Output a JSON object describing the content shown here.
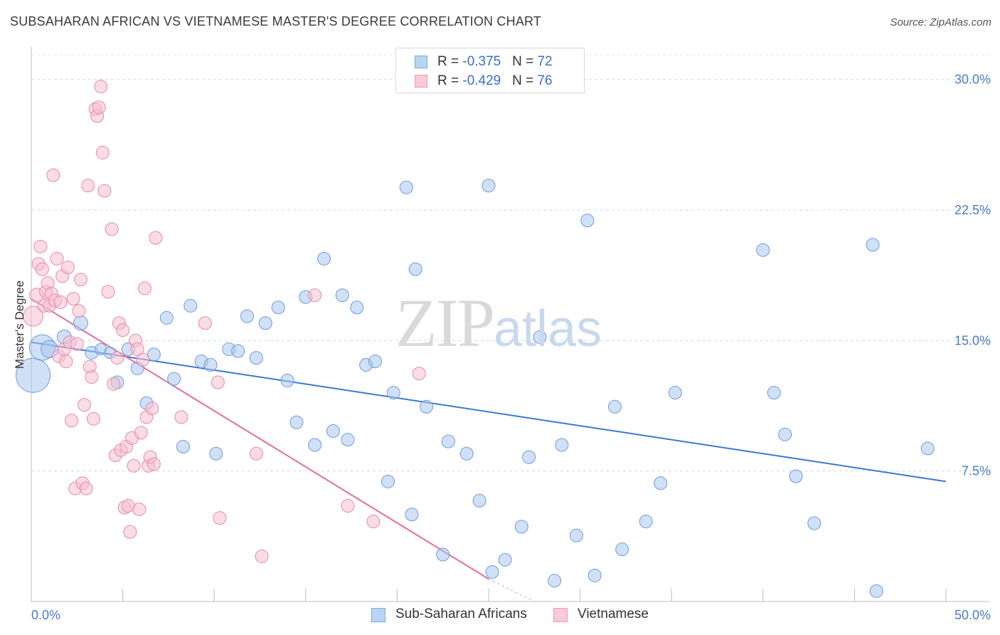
{
  "title": "SUBSAHARAN AFRICAN VS VIETNAMESE MASTER'S DEGREE CORRELATION CHART",
  "source": "Source: ZipAtlas.com",
  "watermark": {
    "zip": "ZIP",
    "atlas": "atlas"
  },
  "legend": {
    "series1": {
      "r_label": "R = ",
      "r_value": "-0.375",
      "n_label": "N = ",
      "n_value": "72"
    },
    "series2": {
      "r_label": "R = ",
      "r_value": "-0.429",
      "n_label": "N = ",
      "n_value": "76"
    }
  },
  "bottom_legend": {
    "series1": "Sub-Saharan Africans",
    "series2": "Vietnamese"
  },
  "colors": {
    "blue_fill": "#a9c6ee",
    "blue_stroke": "#6f9bd8",
    "blue_line": "#3b78d0",
    "pink_fill": "#f6bfd0",
    "pink_stroke": "#e68aa8",
    "pink_line": "#e0709a",
    "tick_text": "#4a7cc7"
  },
  "chart_data": {
    "type": "scatter",
    "title": "SUBSAHARAN AFRICAN VS VIETNAMESE MASTER'S DEGREE CORRELATION CHART",
    "xlabel": "",
    "ylabel": "Master's Degree",
    "xlim": [
      0,
      50
    ],
    "ylim": [
      0,
      31.5
    ],
    "x_tick_labels": [
      "0.0%",
      "50.0%"
    ],
    "y_ticks": [
      7.5,
      15.0,
      22.5,
      30.0
    ],
    "y_tick_labels": [
      "7.5%",
      "15.0%",
      "22.5%",
      "30.0%"
    ],
    "grid": "horizontal dashed",
    "series": [
      {
        "name": "Sub-Saharan Africans",
        "r": -0.375,
        "n": 72,
        "trend": {
          "x": [
            0,
            50
          ],
          "y": [
            14.9,
            6.9
          ]
        },
        "points": [
          [
            0.1,
            13.0,
            24
          ],
          [
            0.6,
            14.6,
            18
          ],
          [
            1.0,
            14.5,
            12
          ],
          [
            1.8,
            15.2,
            10
          ],
          [
            2.7,
            16.0,
            10
          ],
          [
            3.3,
            14.3,
            9
          ],
          [
            3.8,
            14.5,
            8
          ],
          [
            4.3,
            14.3,
            8
          ],
          [
            4.7,
            12.6,
            9
          ],
          [
            5.3,
            14.5,
            9
          ],
          [
            5.8,
            13.4,
            9
          ],
          [
            6.3,
            11.4,
            9
          ],
          [
            6.7,
            14.2,
            9
          ],
          [
            7.4,
            16.3,
            9
          ],
          [
            7.8,
            12.8,
            9
          ],
          [
            8.3,
            8.9,
            9
          ],
          [
            8.7,
            17.0,
            9
          ],
          [
            9.3,
            13.8,
            9
          ],
          [
            9.8,
            13.6,
            9
          ],
          [
            10.1,
            8.5,
            9
          ],
          [
            10.8,
            14.5,
            9
          ],
          [
            11.3,
            14.4,
            9
          ],
          [
            11.8,
            16.4,
            9
          ],
          [
            12.3,
            14.0,
            9
          ],
          [
            12.8,
            16.0,
            9
          ],
          [
            13.5,
            16.9,
            9
          ],
          [
            14.0,
            12.7,
            9
          ],
          [
            14.5,
            10.3,
            9
          ],
          [
            15.0,
            17.5,
            9
          ],
          [
            15.5,
            9.0,
            9
          ],
          [
            16.0,
            19.7,
            9
          ],
          [
            16.5,
            9.8,
            9
          ],
          [
            17.0,
            17.6,
            9
          ],
          [
            17.3,
            9.3,
            9
          ],
          [
            17.8,
            16.9,
            9
          ],
          [
            18.3,
            13.6,
            9
          ],
          [
            18.8,
            13.8,
            9
          ],
          [
            19.5,
            6.9,
            9
          ],
          [
            19.8,
            12.0,
            9
          ],
          [
            20.5,
            23.8,
            9
          ],
          [
            20.8,
            5.0,
            9
          ],
          [
            21.0,
            19.1,
            9
          ],
          [
            21.6,
            11.2,
            9
          ],
          [
            22.5,
            2.7,
            9
          ],
          [
            22.8,
            9.2,
            9
          ],
          [
            23.8,
            8.5,
            9
          ],
          [
            24.5,
            5.8,
            9
          ],
          [
            25.0,
            23.9,
            9
          ],
          [
            25.2,
            1.7,
            9
          ],
          [
            25.9,
            2.4,
            9
          ],
          [
            26.8,
            4.3,
            9
          ],
          [
            27.2,
            8.3,
            9
          ],
          [
            27.8,
            15.2,
            9
          ],
          [
            28.6,
            1.2,
            9
          ],
          [
            29.0,
            9.0,
            9
          ],
          [
            29.8,
            3.8,
            9
          ],
          [
            30.4,
            21.9,
            9
          ],
          [
            30.8,
            1.5,
            9
          ],
          [
            31.9,
            11.2,
            9
          ],
          [
            32.3,
            3.0,
            9
          ],
          [
            33.6,
            4.6,
            9
          ],
          [
            34.4,
            6.8,
            9
          ],
          [
            35.2,
            12.0,
            9
          ],
          [
            40.0,
            20.2,
            9
          ],
          [
            40.6,
            12.0,
            9
          ],
          [
            41.2,
            9.6,
            9
          ],
          [
            41.8,
            7.2,
            9
          ],
          [
            42.8,
            4.5,
            9
          ],
          [
            46.0,
            20.5,
            9
          ],
          [
            46.2,
            0.6,
            9
          ],
          [
            49.0,
            8.8,
            9
          ],
          [
            49.0,
            8.8,
            0
          ]
        ]
      },
      {
        "name": "Vietnamese",
        "r": -0.429,
        "n": 76,
        "trend": {
          "x": [
            0,
            25
          ],
          "y": [
            17.4,
            1.3
          ]
        },
        "trend_dashed": {
          "x": [
            25,
            27.5
          ],
          "y": [
            1.3,
            -0.3
          ]
        },
        "points": [
          [
            0.1,
            16.4,
            14
          ],
          [
            0.3,
            17.6,
            10
          ],
          [
            0.4,
            19.4,
            9
          ],
          [
            0.5,
            20.4,
            9
          ],
          [
            0.6,
            19.1,
            9
          ],
          [
            0.7,
            17.0,
            9
          ],
          [
            0.8,
            17.8,
            9
          ],
          [
            0.9,
            18.3,
            9
          ],
          [
            1.0,
            17.0,
            9
          ],
          [
            1.1,
            17.7,
            9
          ],
          [
            1.2,
            24.5,
            9
          ],
          [
            1.3,
            17.3,
            9
          ],
          [
            1.4,
            19.7,
            9
          ],
          [
            1.5,
            14.1,
            9
          ],
          [
            1.6,
            17.2,
            9
          ],
          [
            1.7,
            18.7,
            9
          ],
          [
            1.8,
            14.5,
            9
          ],
          [
            1.9,
            13.8,
            9
          ],
          [
            2.0,
            19.2,
            9
          ],
          [
            2.1,
            14.9,
            9
          ],
          [
            2.2,
            10.4,
            9
          ],
          [
            2.3,
            17.4,
            9
          ],
          [
            2.4,
            6.5,
            9
          ],
          [
            2.5,
            14.8,
            9
          ],
          [
            2.6,
            16.7,
            9
          ],
          [
            2.7,
            18.5,
            9
          ],
          [
            2.8,
            6.8,
            9
          ],
          [
            2.9,
            11.3,
            9
          ],
          [
            3.0,
            6.5,
            9
          ],
          [
            3.1,
            23.9,
            9
          ],
          [
            3.2,
            13.5,
            9
          ],
          [
            3.3,
            12.9,
            9
          ],
          [
            3.4,
            10.5,
            9
          ],
          [
            3.5,
            28.3,
            9
          ],
          [
            3.6,
            27.9,
            9
          ],
          [
            3.7,
            28.4,
            9
          ],
          [
            3.8,
            29.6,
            9
          ],
          [
            3.9,
            25.8,
            9
          ],
          [
            4.0,
            23.6,
            9
          ],
          [
            4.2,
            17.8,
            9
          ],
          [
            4.4,
            21.4,
            9
          ],
          [
            4.5,
            12.5,
            9
          ],
          [
            4.6,
            8.4,
            9
          ],
          [
            4.7,
            14.0,
            9
          ],
          [
            4.8,
            16.0,
            9
          ],
          [
            4.9,
            8.7,
            9
          ],
          [
            5.0,
            15.6,
            9
          ],
          [
            5.1,
            5.4,
            9
          ],
          [
            5.2,
            8.9,
            9
          ],
          [
            5.3,
            5.5,
            9
          ],
          [
            5.4,
            4.0,
            9
          ],
          [
            5.5,
            9.4,
            9
          ],
          [
            5.6,
            7.8,
            9
          ],
          [
            5.7,
            15.0,
            9
          ],
          [
            5.8,
            14.5,
            9
          ],
          [
            5.9,
            5.3,
            9
          ],
          [
            6.0,
            9.7,
            9
          ],
          [
            6.1,
            13.9,
            9
          ],
          [
            6.2,
            18.0,
            9
          ],
          [
            6.3,
            10.6,
            9
          ],
          [
            6.4,
            7.8,
            9
          ],
          [
            6.5,
            8.3,
            9
          ],
          [
            6.6,
            11.1,
            9
          ],
          [
            6.7,
            7.9,
            9
          ],
          [
            6.8,
            20.9,
            9
          ],
          [
            8.2,
            10.6,
            9
          ],
          [
            9.5,
            16.0,
            9
          ],
          [
            10.2,
            12.6,
            9
          ],
          [
            10.3,
            4.8,
            9
          ],
          [
            12.3,
            8.5,
            9
          ],
          [
            12.6,
            2.6,
            9
          ],
          [
            15.5,
            17.6,
            9
          ],
          [
            17.3,
            5.5,
            9
          ],
          [
            18.7,
            4.6,
            9
          ],
          [
            21.2,
            13.1,
            9
          ],
          [
            21.2,
            13.1,
            0
          ]
        ]
      }
    ]
  }
}
